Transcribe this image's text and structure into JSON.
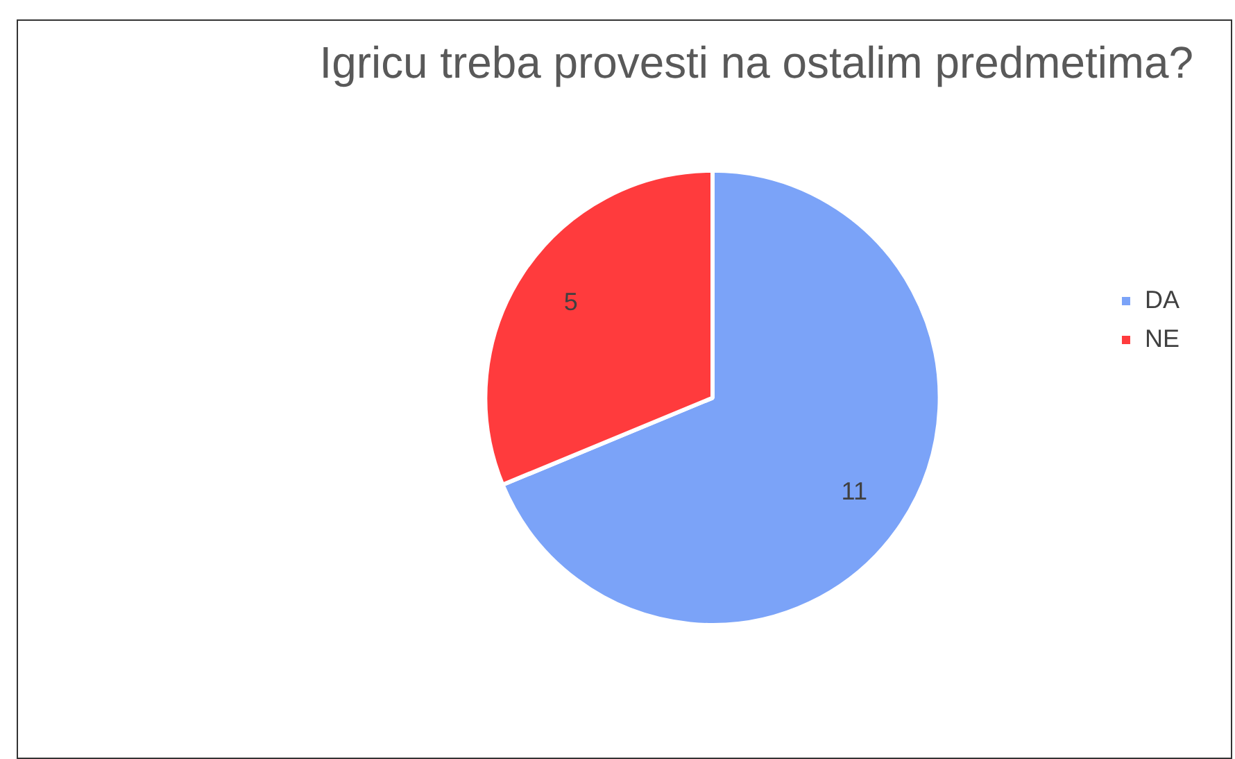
{
  "chart_data": {
    "type": "pie",
    "title": "Igricu treba provesti na ostalim predmetima?",
    "categories": [
      "DA",
      "NE"
    ],
    "values": [
      11,
      5
    ],
    "colors": [
      "#7ba3f8",
      "#ff3b3d"
    ],
    "data_labels": true,
    "legend": "right"
  }
}
